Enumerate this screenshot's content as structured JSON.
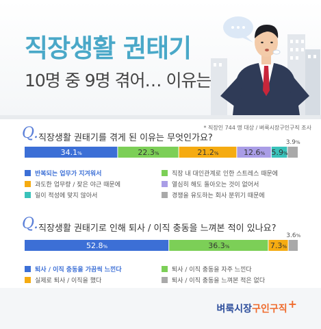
{
  "header": {
    "title": "직장생활 권태기",
    "subtitle": "10명 중 9명 겪어… 이유는?",
    "source": "* 직장인 744 명 대상 / 벼룩시장구인구직 조사"
  },
  "colors": {
    "blue": "#3c6fd6",
    "green": "#7ccf57",
    "orange": "#f5ab11",
    "purple": "#a99de6",
    "teal": "#39c2ba",
    "gray": "#a9a9a9",
    "title_accent": "#4aa8c8"
  },
  "questions": [
    {
      "mark": "Q.",
      "text": "직장생활 권태기를 겪게 된 이유는 무엇인가요?"
    },
    {
      "mark": "Q.",
      "text": "직장생활 권태기로 인해 퇴사 / 이직 충동을 느껴본 적이 있나요?"
    }
  ],
  "chart_data": [
    {
      "type": "bar",
      "orientation": "horizontal-stacked",
      "unit": "%",
      "series": [
        {
          "name": "반복되는 업무가 지겨워서",
          "value": 34.1,
          "color": "#3c6fd6"
        },
        {
          "name": "직장 내 대인관계로 인한 스트레스 때문에",
          "value": 22.3,
          "color": "#7ccf57"
        },
        {
          "name": "과도한 업무량 / 잦은 야근 때문에",
          "value": 21.2,
          "color": "#f5ab11"
        },
        {
          "name": "열심히 해도 돌아오는 것이 없어서",
          "value": 12.6,
          "color": "#a99de6"
        },
        {
          "name": "일이 적성에 맞지 않아서",
          "value": 5.9,
          "color": "#39c2ba"
        },
        {
          "name": "경쟁을 유도하는 회사 분위기 때문에",
          "value": 3.9,
          "color": "#a9a9a9"
        }
      ]
    },
    {
      "type": "bar",
      "orientation": "horizontal-stacked",
      "unit": "%",
      "series": [
        {
          "name": "퇴사 / 이직 충동을 가끔씩 느낀다",
          "value": 52.8,
          "color": "#3c6fd6"
        },
        {
          "name": "퇴사 / 이직 충동을 자주 느낀다",
          "value": 36.3,
          "color": "#7ccf57"
        },
        {
          "name": "실제로 퇴사 / 이직을 했다",
          "value": 7.3,
          "color": "#f5ab11"
        },
        {
          "name": "퇴사 / 이직 충동을 느껴본 적은 없다",
          "value": 3.6,
          "color": "#a9a9a9"
        }
      ]
    }
  ],
  "footer": {
    "logo_main": "벼룩시장",
    "logo_sub": "구인구직",
    "logo_plus": "+"
  }
}
